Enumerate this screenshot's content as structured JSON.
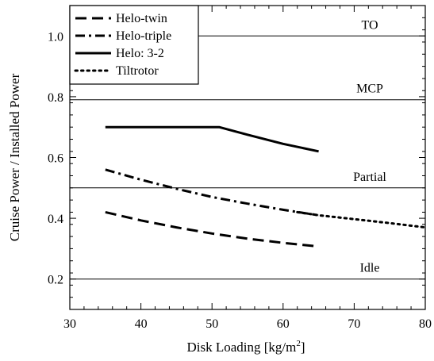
{
  "chart_data": {
    "type": "line",
    "xlabel": "Disk Loading [kg/m",
    "xlabel_sup": "2",
    "xlabel_end": "]",
    "ylabel": "Cruise Power / Installed Power",
    "xlim": [
      30,
      80
    ],
    "ylim": [
      0.1,
      1.1
    ],
    "x_ticks": [
      30,
      40,
      50,
      60,
      70,
      80
    ],
    "y_ticks": [
      0.2,
      0.4,
      0.6,
      0.8,
      1.0
    ],
    "y_tick_labels": [
      "0.2",
      "0.4",
      "0.6",
      "0.8",
      "1.0"
    ],
    "grid": false,
    "legend_position": "top-left",
    "reference_lines": [
      {
        "label": "TO",
        "y": 1.0
      },
      {
        "label": "MCP",
        "y": 0.79
      },
      {
        "label": "Partial",
        "y": 0.5
      },
      {
        "label": "Idle",
        "y": 0.2
      }
    ],
    "series": [
      {
        "name": "Helo-twin",
        "style": "dashed",
        "x": [
          35,
          40,
          45,
          50,
          55,
          60,
          65
        ],
        "y": [
          0.42,
          0.393,
          0.37,
          0.35,
          0.333,
          0.319,
          0.307
        ]
      },
      {
        "name": "Helo-triple",
        "style": "dashdot",
        "x": [
          35,
          40,
          45,
          50,
          55,
          60,
          65
        ],
        "y": [
          0.56,
          0.527,
          0.497,
          0.47,
          0.448,
          0.428,
          0.41
        ]
      },
      {
        "name": "Helo: 3-2",
        "style": "solid",
        "x": [
          35,
          51,
          55,
          60,
          65
        ],
        "y": [
          0.7,
          0.7,
          0.675,
          0.645,
          0.62
        ]
      },
      {
        "name": "Tiltrotor",
        "style": "dotted",
        "x": [
          62,
          65,
          70,
          75,
          80
        ],
        "y": [
          0.42,
          0.41,
          0.397,
          0.384,
          0.37
        ]
      }
    ]
  }
}
